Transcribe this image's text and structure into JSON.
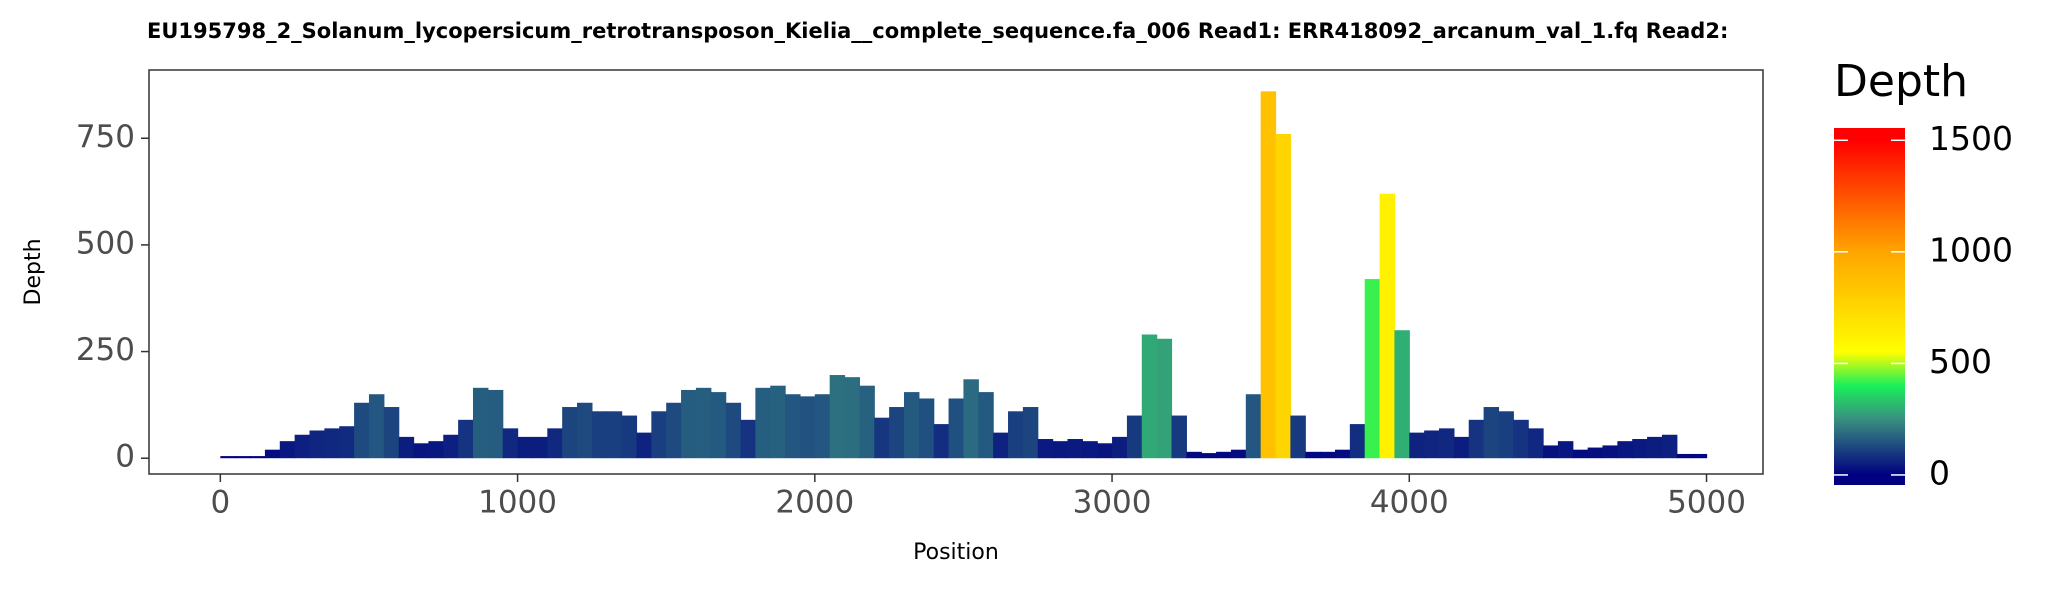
{
  "chart_data": {
    "type": "bar",
    "title": "EU195798_2_Solanum_lycopersicum_retrotransposon_Kielia__complete_sequence.fa_006   Read1: ERR418092_arcanum_val_1.fq   Read2:",
    "x_label": "Position",
    "y_label": "Depth",
    "legend_title": "Depth",
    "x": [
      0,
      50,
      100,
      150,
      200,
      250,
      300,
      350,
      400,
      450,
      500,
      550,
      600,
      650,
      700,
      750,
      800,
      850,
      900,
      950,
      1000,
      1050,
      1100,
      1150,
      1200,
      1250,
      1300,
      1350,
      1400,
      1450,
      1500,
      1550,
      1600,
      1650,
      1700,
      1750,
      1800,
      1850,
      1900,
      1950,
      2000,
      2050,
      2100,
      2150,
      2200,
      2250,
      2300,
      2350,
      2400,
      2450,
      2500,
      2550,
      2600,
      2650,
      2700,
      2750,
      2800,
      2850,
      2900,
      2950,
      3000,
      3050,
      3100,
      3150,
      3200,
      3250,
      3300,
      3350,
      3400,
      3450,
      3500,
      3550,
      3600,
      3650,
      3700,
      3750,
      3800,
      3850,
      3900,
      3950,
      4000,
      4050,
      4100,
      4150,
      4200,
      4250,
      4300,
      4350,
      4400,
      4450,
      4500,
      4550,
      4600,
      4650,
      4700,
      4750,
      4800,
      4850,
      4900,
      4950
    ],
    "values": [
      5,
      5,
      5,
      20,
      40,
      55,
      65,
      70,
      75,
      130,
      150,
      120,
      50,
      35,
      40,
      55,
      90,
      165,
      160,
      70,
      50,
      50,
      70,
      120,
      130,
      110,
      110,
      100,
      60,
      110,
      130,
      160,
      165,
      155,
      130,
      90,
      165,
      170,
      150,
      145,
      150,
      195,
      190,
      170,
      95,
      120,
      155,
      140,
      80,
      140,
      185,
      155,
      60,
      110,
      120,
      45,
      40,
      45,
      40,
      35,
      50,
      100,
      290,
      280,
      100,
      15,
      12,
      15,
      20,
      150,
      860,
      760,
      100,
      15,
      15,
      20,
      80,
      420,
      620,
      300,
      60,
      65,
      70,
      50,
      90,
      120,
      110,
      90,
      70,
      30,
      40,
      20,
      25,
      30,
      40,
      45,
      50,
      55,
      10,
      10
    ],
    "xlim": [
      -240,
      5190
    ],
    "ylim": [
      -37,
      910
    ],
    "xticks": [
      0,
      1000,
      2000,
      3000,
      4000,
      5000
    ],
    "yticks": [
      0,
      250,
      500,
      750
    ],
    "grid": false,
    "color_range": [
      -45,
      1555
    ],
    "color_ticks": [
      0,
      500,
      1000,
      1500
    ],
    "colormap": [
      {
        "value": 0,
        "color": "#000080"
      },
      {
        "value": 250,
        "color": "#3a8f80"
      },
      {
        "value": 400,
        "color": "#1aef5a"
      },
      {
        "value": 550,
        "color": "#ffff00"
      },
      {
        "value": 1000,
        "color": "#ffa500"
      },
      {
        "value": 1500,
        "color": "#ff0000"
      }
    ]
  }
}
